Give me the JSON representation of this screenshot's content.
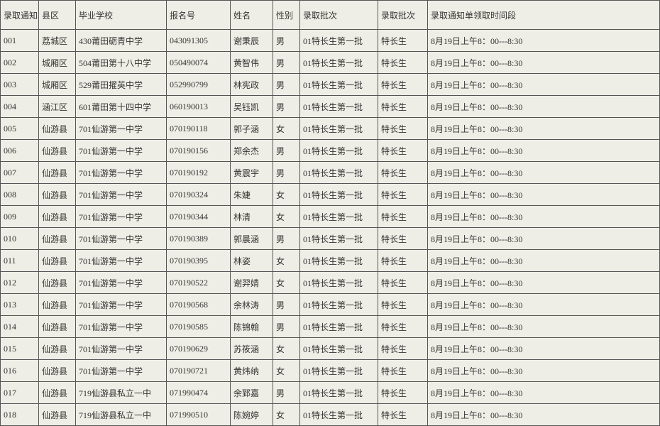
{
  "table": {
    "columns": [
      "录取通知单序号",
      "县区",
      "毕业学校",
      "报名号",
      "姓名",
      "性别",
      "录取批次",
      "录取批次",
      "录取通知单领取时间段"
    ],
    "rows": [
      [
        "001",
        "荔城区",
        "430莆田砺青中学",
        "043091305",
        "谢秉辰",
        "男",
        "01特长生第一批",
        "特长生",
        "8月19日上午8：00---8:30"
      ],
      [
        "002",
        "城厢区",
        "504莆田第十八中学",
        "050490074",
        "黄智伟",
        "男",
        "01特长生第一批",
        "特长生",
        "8月19日上午8：00---8:30"
      ],
      [
        "003",
        "城厢区",
        "529莆田擢英中学",
        "052990799",
        "林宪政",
        "男",
        "01特长生第一批",
        "特长生",
        "8月19日上午8：00---8:30"
      ],
      [
        "004",
        "涵江区",
        "601莆田第十四中学",
        "060190013",
        "吴钰凯",
        "男",
        "01特长生第一批",
        "特长生",
        "8月19日上午8：00---8:30"
      ],
      [
        "005",
        "仙游县",
        "701仙游第一中学",
        "070190118",
        "郭子涵",
        "女",
        "01特长生第一批",
        "特长生",
        "8月19日上午8：00---8:30"
      ],
      [
        "006",
        "仙游县",
        "701仙游第一中学",
        "070190156",
        "郑余杰",
        "男",
        "01特长生第一批",
        "特长生",
        "8月19日上午8：00---8:30"
      ],
      [
        "007",
        "仙游县",
        "701仙游第一中学",
        "070190192",
        "黄震宇",
        "男",
        "01特长生第一批",
        "特长生",
        "8月19日上午8：00---8:30"
      ],
      [
        "008",
        "仙游县",
        "701仙游第一中学",
        "070190324",
        "朱婕",
        "女",
        "01特长生第一批",
        "特长生",
        "8月19日上午8：00---8:30"
      ],
      [
        "009",
        "仙游县",
        "701仙游第一中学",
        "070190344",
        "林清",
        "女",
        "01特长生第一批",
        "特长生",
        "8月19日上午8：00---8:30"
      ],
      [
        "010",
        "仙游县",
        "701仙游第一中学",
        "070190389",
        "郭晨涵",
        "男",
        "01特长生第一批",
        "特长生",
        "8月19日上午8：00---8:30"
      ],
      [
        "011",
        "仙游县",
        "701仙游第一中学",
        "070190395",
        "林姿",
        "女",
        "01特长生第一批",
        "特长生",
        "8月19日上午8：00---8:30"
      ],
      [
        "012",
        "仙游县",
        "701仙游第一中学",
        "070190522",
        "谢羿婧",
        "女",
        "01特长生第一批",
        "特长生",
        "8月19日上午8：00---8:30"
      ],
      [
        "013",
        "仙游县",
        "701仙游第一中学",
        "070190568",
        "余林涛",
        "男",
        "01特长生第一批",
        "特长生",
        "8月19日上午8：00---8:30"
      ],
      [
        "014",
        "仙游县",
        "701仙游第一中学",
        "070190585",
        "陈锦翰",
        "男",
        "01特长生第一批",
        "特长生",
        "8月19日上午8：00---8:30"
      ],
      [
        "015",
        "仙游县",
        "701仙游第一中学",
        "070190629",
        "苏筱涵",
        "女",
        "01特长生第一批",
        "特长生",
        "8月19日上午8：00---8:30"
      ],
      [
        "016",
        "仙游县",
        "701仙游第一中学",
        "070190721",
        "黄炜纳",
        "女",
        "01特长生第一批",
        "特长生",
        "8月19日上午8：00---8:30"
      ],
      [
        "017",
        "仙游县",
        "719仙游县私立一中",
        "071990474",
        "余郅嘉",
        "男",
        "01特长生第一批",
        "特长生",
        "8月19日上午8：00---8:30"
      ],
      [
        "018",
        "仙游县",
        "719仙游县私立一中",
        "071990510",
        "陈婉婷",
        "女",
        "01特长生第一批",
        "特长生",
        "8月19日上午8：00---8:30"
      ]
    ],
    "col_classes": [
      "c0",
      "c1",
      "c2",
      "c3",
      "c4",
      "c5",
      "c6",
      "c7",
      "c8"
    ],
    "background_color": "#eeeee6",
    "border_color": "#555555",
    "font_size": 12
  }
}
